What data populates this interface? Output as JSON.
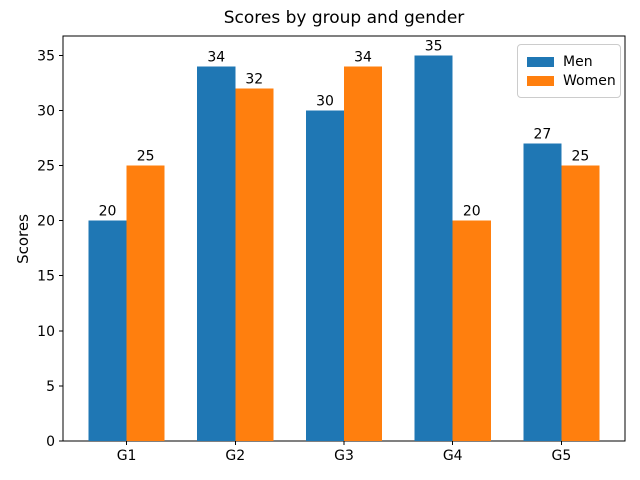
{
  "chart_data": {
    "type": "bar",
    "title": "Scores by group and gender",
    "xlabel": "",
    "ylabel": "Scores",
    "categories": [
      "G1",
      "G2",
      "G3",
      "G4",
      "G5"
    ],
    "series": [
      {
        "name": "Men",
        "color": "#1f77b4",
        "values": [
          20,
          34,
          30,
          35,
          27
        ]
      },
      {
        "name": "Women",
        "color": "#ff7f0e",
        "values": [
          25,
          32,
          34,
          20,
          25
        ]
      }
    ],
    "bar_value_labels": true,
    "bar_width": 0.35,
    "ylim": [
      0,
      36.75
    ],
    "yticks": [
      0,
      5,
      10,
      15,
      20,
      25,
      30,
      35
    ],
    "grid": false,
    "legend_position": "upper right",
    "colors": {
      "axes_spine": "#000000",
      "text": "#000000",
      "background": "#ffffff",
      "legend_border": "#cccccc"
    }
  }
}
